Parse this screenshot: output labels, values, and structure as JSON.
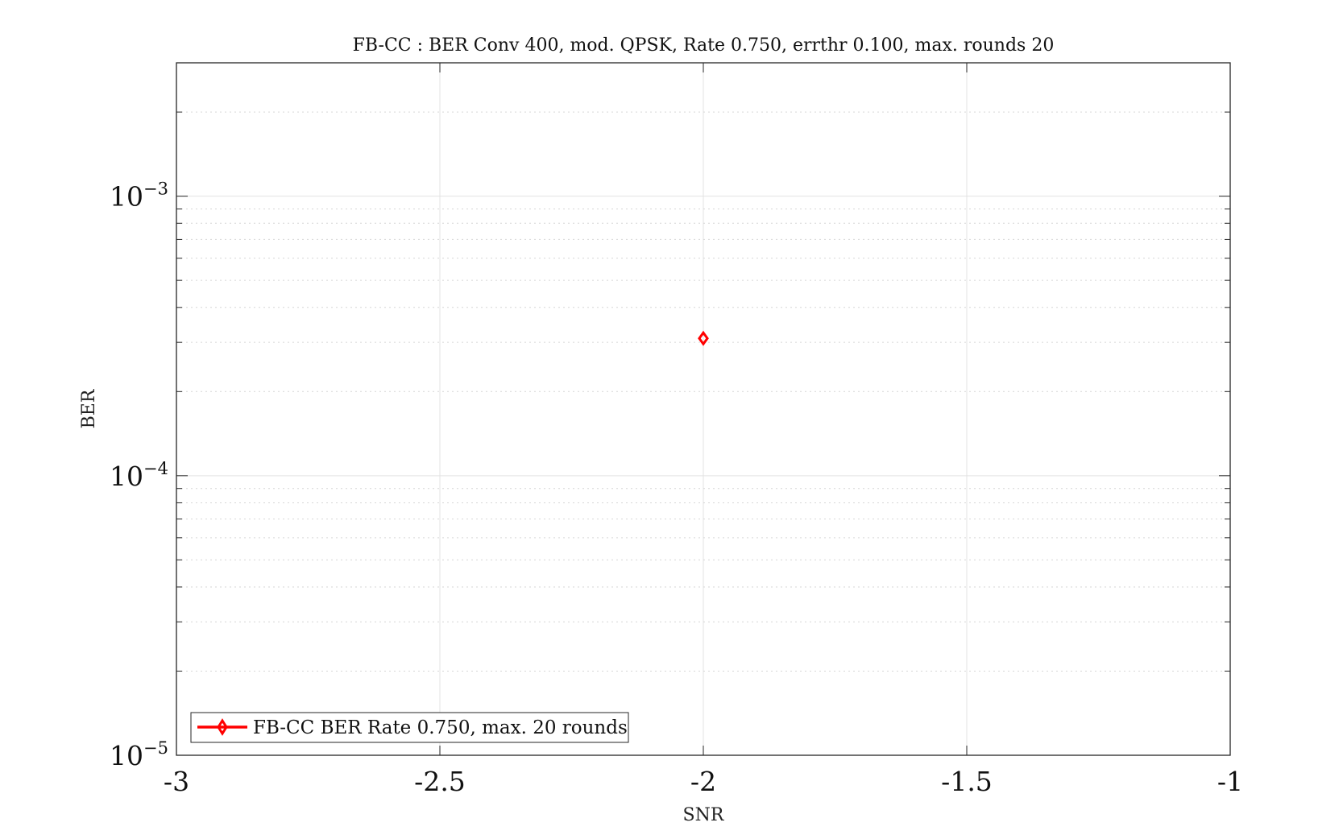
{
  "chart_data": {
    "type": "scatter",
    "title": "FB-CC : BER Conv 400, mod. QPSK, Rate 0.750, errthr 0.100, max. rounds 20",
    "xlabel": "SNR",
    "ylabel": "BER",
    "xlim": [
      -3,
      -1
    ],
    "ylim": [
      1e-05,
      0.003
    ],
    "yscale": "log",
    "grid": true,
    "legend_position": "bottom-left",
    "x_ticks": [
      "-3",
      "-2.5",
      "-2",
      "-1.5",
      "-1"
    ],
    "x_tick_values": [
      -3,
      -2.5,
      -2,
      -1.5,
      -1
    ],
    "y_ticks": [
      {
        "base": "10",
        "exp": "−5",
        "value": 1e-05
      },
      {
        "base": "10",
        "exp": "−4",
        "value": 0.0001
      },
      {
        "base": "10",
        "exp": "−3",
        "value": 0.001
      }
    ],
    "series": [
      {
        "name": "FB-CC BER Rate 0.750, max. 20 rounds",
        "color": "#ff0000",
        "marker": "diamond",
        "x": [
          -2
        ],
        "y": [
          0.00031
        ]
      }
    ]
  }
}
